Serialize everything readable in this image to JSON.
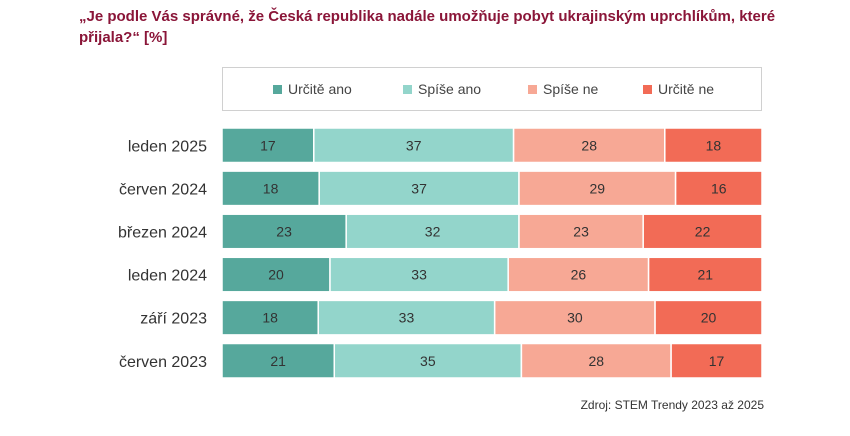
{
  "title": "„Je podle Vás správné, že Česká republika nadále umožňuje pobyt ukrajinským uprchlíkům, které přijala?“ [%]",
  "source": "Zdroj: STEM Trendy 2023 až 2025",
  "chart_data": {
    "type": "bar",
    "orientation": "horizontal",
    "stacked": true,
    "title": "„Je podle Vás správné, že Česká republika nadále umožňuje pobyt ukrajinským uprchlíkům, které přijala?“ [%]",
    "categories": [
      "leden 2025",
      "červen 2024",
      "březen 2024",
      "leden 2024",
      "září 2023",
      "červen 2023"
    ],
    "series": [
      {
        "name": "Určitě ano",
        "color": "#56a89c",
        "values": [
          17,
          18,
          23,
          20,
          18,
          21
        ]
      },
      {
        "name": "Spíše ano",
        "color": "#93d5cb",
        "values": [
          37,
          37,
          32,
          33,
          33,
          35
        ]
      },
      {
        "name": "Spíše ne",
        "color": "#f7a895",
        "values": [
          28,
          29,
          23,
          26,
          30,
          28
        ]
      },
      {
        "name": "Určitě ne",
        "color": "#f26b56",
        "values": [
          18,
          16,
          22,
          21,
          20,
          17
        ]
      }
    ],
    "legend_position": "top",
    "grid": false,
    "data_labels": true
  }
}
